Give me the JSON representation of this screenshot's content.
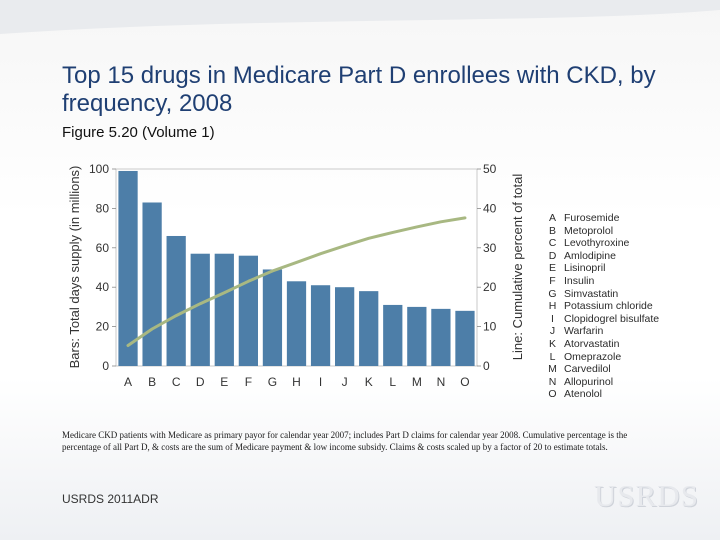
{
  "title": "Top 15 drugs in Medicare Part D enrollees with CKD, by frequency, 2008",
  "subtitle": "Figure 5.20 (Volume 1)",
  "chart_data": {
    "type": "bar",
    "categories": [
      "A",
      "B",
      "C",
      "D",
      "E",
      "F",
      "G",
      "H",
      "I",
      "J",
      "K",
      "L",
      "M",
      "N",
      "O"
    ],
    "series": [
      {
        "name": "Bars: Total days supply (in millions)",
        "axis": "left",
        "type": "bar",
        "values": [
          99,
          83,
          66,
          57,
          57,
          56,
          49,
          43,
          41,
          40,
          38,
          31,
          30,
          29,
          28
        ]
      },
      {
        "name": "Line: Cumulative percent of total",
        "axis": "right",
        "type": "line",
        "values": [
          5.2,
          9.4,
          12.8,
          15.8,
          18.6,
          21.5,
          24.1,
          26.3,
          28.5,
          30.5,
          32.4,
          33.9,
          35.3,
          36.6,
          37.6
        ]
      }
    ],
    "ylabel": "Bars: Total days supply (in millions)",
    "y2label": "Line: Cumulative percent of total",
    "ylim": [
      0,
      100
    ],
    "y2lim": [
      0,
      50
    ],
    "yticks": [
      "0",
      "20",
      "40",
      "60",
      "80",
      "100"
    ],
    "y2ticks": [
      "0",
      "10",
      "20",
      "30",
      "40",
      "50"
    ],
    "bar_color": "#4d7ea8",
    "line_color": "#a8b882",
    "grid": false
  },
  "legend": [
    {
      "letter": "A",
      "drug": "Furosemide"
    },
    {
      "letter": "B",
      "drug": "Metoprolol"
    },
    {
      "letter": "C",
      "drug": "Levothyroxine"
    },
    {
      "letter": "D",
      "drug": "Amlodipine"
    },
    {
      "letter": "E",
      "drug": "Lisinopril"
    },
    {
      "letter": "F",
      "drug": "Insulin"
    },
    {
      "letter": "G",
      "drug": "Simvastatin"
    },
    {
      "letter": "H",
      "drug": "Potassium chloride"
    },
    {
      "letter": "I",
      "drug": "Clopidogrel bisulfate"
    },
    {
      "letter": "J",
      "drug": "Warfarin"
    },
    {
      "letter": "K",
      "drug": "Atorvastatin"
    },
    {
      "letter": "L",
      "drug": "Omeprazole"
    },
    {
      "letter": "M",
      "drug": "Carvedilol"
    },
    {
      "letter": "N",
      "drug": "Allopurinol"
    },
    {
      "letter": "O",
      "drug": "Atenolol"
    }
  ],
  "note": "Medicare CKD patients with Medicare as primary payor for calendar year 2007; includes Part D claims for calendar year 2008. Cumulative percentage is the percentage of all Part D, & costs are the sum of Medicare payment & low income subsidy. Claims & costs scaled up by a factor of 20 to estimate totals.",
  "footer": "USRDS 2011ADR",
  "logo": "USRDS"
}
